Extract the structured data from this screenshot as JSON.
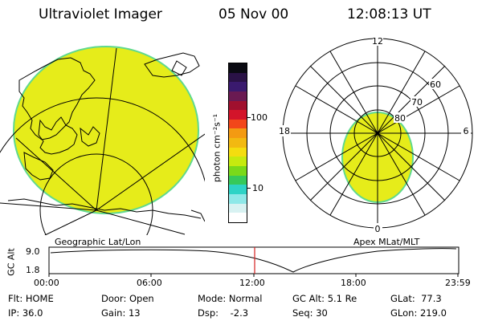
{
  "header": {
    "title": "Ultraviolet Imager",
    "date": "05 Nov 00",
    "time": "12:08:13 UT"
  },
  "left_panel": {
    "caption": "Geographic Lat/Lon",
    "fill_color": "#e6ec1a",
    "edge_color": "#5fd98e"
  },
  "colorbar": {
    "unit_label": "photon cm⁻²s⁻¹",
    "ticks": [
      "100",
      "10"
    ],
    "colors": [
      "#0a0a12",
      "#2a1246",
      "#3a1a6e",
      "#6a1a52",
      "#a0102e",
      "#d3142a",
      "#f2461a",
      "#f39a12",
      "#f2b911",
      "#f4dd0f",
      "#c6ea0f",
      "#7ad91a",
      "#36c95a",
      "#2ed3c6",
      "#8ee8e8",
      "#d8f2f2",
      "#ffffff"
    ]
  },
  "right_panel": {
    "caption": "Apex MLat/MLT",
    "mlt_labels": {
      "top": "12",
      "right": "6",
      "bottom": "0",
      "left": "18"
    },
    "lat_labels": [
      "60",
      "70",
      "80"
    ]
  },
  "timeline": {
    "y_axis_label": "GC Alt",
    "y_ticks": [
      "9.0",
      "1.8"
    ],
    "x_ticks": [
      "00:00",
      "06:00",
      "12:00",
      "18:00",
      "23:59"
    ],
    "current_marker_color": "#d62020"
  },
  "status": {
    "col1": [
      {
        "label": "Flt:",
        "value": "HOME"
      },
      {
        "label": "IP:",
        "value": "36.0"
      }
    ],
    "col2": [
      {
        "label": "Door:",
        "value": "Open"
      },
      {
        "label": "Gain:",
        "value": "13"
      }
    ],
    "col3": [
      {
        "label": "Mode:",
        "value": "Normal"
      },
      {
        "label": "Dsp:",
        "value": "-2.3"
      }
    ],
    "col4": [
      {
        "label": "GC Alt:",
        "value": "5.1 Re"
      },
      {
        "label": "Seq:",
        "value": "30"
      }
    ],
    "col5": [
      {
        "label": "GLat:",
        "value": "77.3"
      },
      {
        "label": "GLon:",
        "value": "219.0"
      }
    ]
  }
}
